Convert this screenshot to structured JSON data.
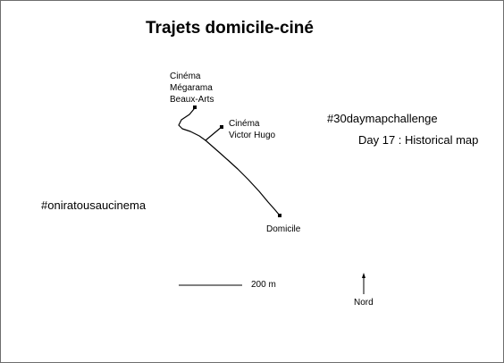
{
  "title": "Trajets domicile-ciné",
  "places": {
    "megarama": [
      "Cinéma",
      "Mégarama",
      "Beaux-Arts"
    ],
    "victor_hugo": [
      "Cinéma",
      "Victor Hugo"
    ],
    "home": "Domicile"
  },
  "hashtag_challenge": "#30daymapchallenge",
  "day_label": "Day 17 : Historical map",
  "hashtag_cinema": "#oniratousaucinema",
  "scale_label": "200 m",
  "north_label": "Nord",
  "colors": {
    "route": "#000000",
    "frame": "#6e6e6e",
    "background": "#ffffff"
  }
}
